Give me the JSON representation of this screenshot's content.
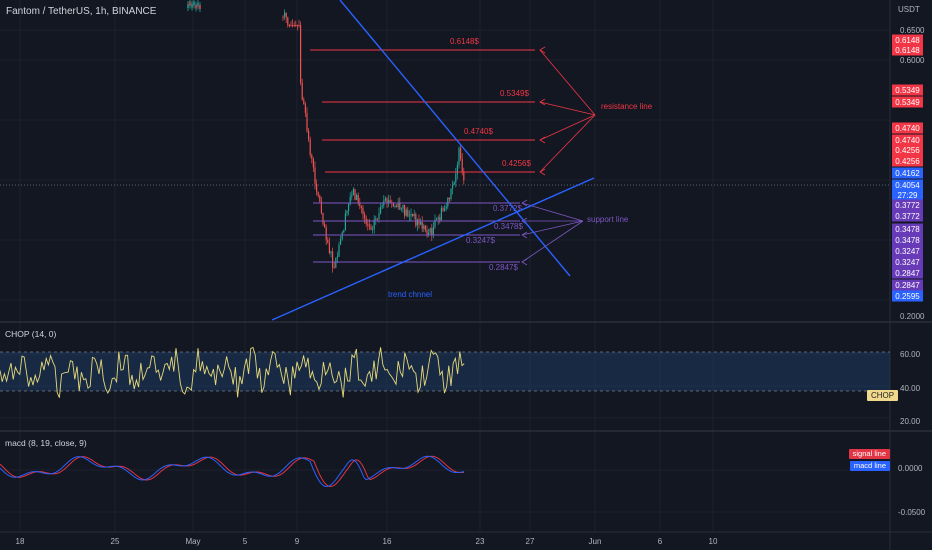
{
  "header": {
    "title": "Fantom / TetherUS, 1h, BINANCE",
    "currency": "USDT"
  },
  "price_axis": {
    "ticks": [
      "0.6500",
      "0.6000",
      "0.2000"
    ],
    "tags": [
      {
        "text": "0.6148",
        "color": "#f23645"
      },
      {
        "text": "0.6148",
        "color": "#f23645"
      },
      {
        "text": "0.5349",
        "color": "#f23645"
      },
      {
        "text": "0.5349",
        "color": "#f23645"
      },
      {
        "text": "0.4740",
        "color": "#f23645"
      },
      {
        "text": "0.4740",
        "color": "#f23645"
      },
      {
        "text": "0.4256",
        "color": "#f23645"
      },
      {
        "text": "0.4256",
        "color": "#f23645"
      },
      {
        "text": "0.4162",
        "color": "#2962ff"
      },
      {
        "text": "0.4054",
        "color": "#2962ff"
      },
      {
        "text": "27:29",
        "color": "#2962ff"
      },
      {
        "text": "0.3772",
        "color": "#673ab7"
      },
      {
        "text": "0.3772",
        "color": "#673ab7"
      },
      {
        "text": "0.3478",
        "color": "#673ab7"
      },
      {
        "text": "0.3478",
        "color": "#673ab7"
      },
      {
        "text": "0.3247",
        "color": "#673ab7"
      },
      {
        "text": "0.3247",
        "color": "#673ab7"
      },
      {
        "text": "0.2847",
        "color": "#673ab7"
      },
      {
        "text": "0.2847",
        "color": "#673ab7"
      },
      {
        "text": "0.2595",
        "color": "#2962ff"
      }
    ]
  },
  "time_axis": {
    "labels": [
      "18",
      "25",
      "May",
      "5",
      "9",
      "16",
      "23",
      "27",
      "Jun",
      "6",
      "10"
    ]
  },
  "annotations": {
    "resistance": {
      "label": "resistance line",
      "levels": [
        "0.6148$",
        "0.5349$",
        "0.4740$",
        "0.4256$"
      ],
      "color": "#f23645"
    },
    "support": {
      "label": "support line",
      "levels": [
        "0.3772$",
        "0.3478$",
        "0.3247$",
        "0.2847$"
      ],
      "color": "#7e57c2"
    },
    "trend": {
      "label": "trend chnnel",
      "color": "#2962ff"
    }
  },
  "chop": {
    "label": "CHOP (14, 0)",
    "ticks": [
      "60.00",
      "40.00",
      "20.00"
    ],
    "tag": "CHOP",
    "upper": 61.8,
    "lower": 38.2
  },
  "macd": {
    "label": "macd (8, 19, close, 9)",
    "ticks": [
      "0.0000",
      "-0.0500"
    ],
    "legend": [
      "signal line",
      "macd line"
    ]
  },
  "chart_data": {
    "type": "candlestick",
    "symbol": "Fantom / TetherUS",
    "interval": "1h",
    "exchange": "BINANCE",
    "current_price": 0.4054,
    "last_tag_price": 0.4162,
    "resistance_levels": [
      0.6148,
      0.5349,
      0.474,
      0.4256
    ],
    "support_levels": [
      0.3772,
      0.3478,
      0.3247,
      0.2847
    ],
    "low_tag_price": 0.2595,
    "price_path": [
      {
        "x": "Apr 28",
        "y": 0.67
      },
      {
        "x": "May 5",
        "y": 0.67
      },
      {
        "x": "May 8",
        "y": 0.67
      },
      {
        "x": "May 9",
        "y": 0.6
      },
      {
        "x": "May 10",
        "y": 0.43
      },
      {
        "x": "May 11",
        "y": 0.27
      },
      {
        "x": "May 12",
        "y": 0.4
      },
      {
        "x": "May 14",
        "y": 0.34
      },
      {
        "x": "May 16",
        "y": 0.38
      },
      {
        "x": "May 18",
        "y": 0.36
      },
      {
        "x": "May 20",
        "y": 0.33
      },
      {
        "x": "May 22",
        "y": 0.385
      },
      {
        "x": "May 22",
        "y": 0.455
      },
      {
        "x": "May 22",
        "y": 0.405
      }
    ]
  }
}
